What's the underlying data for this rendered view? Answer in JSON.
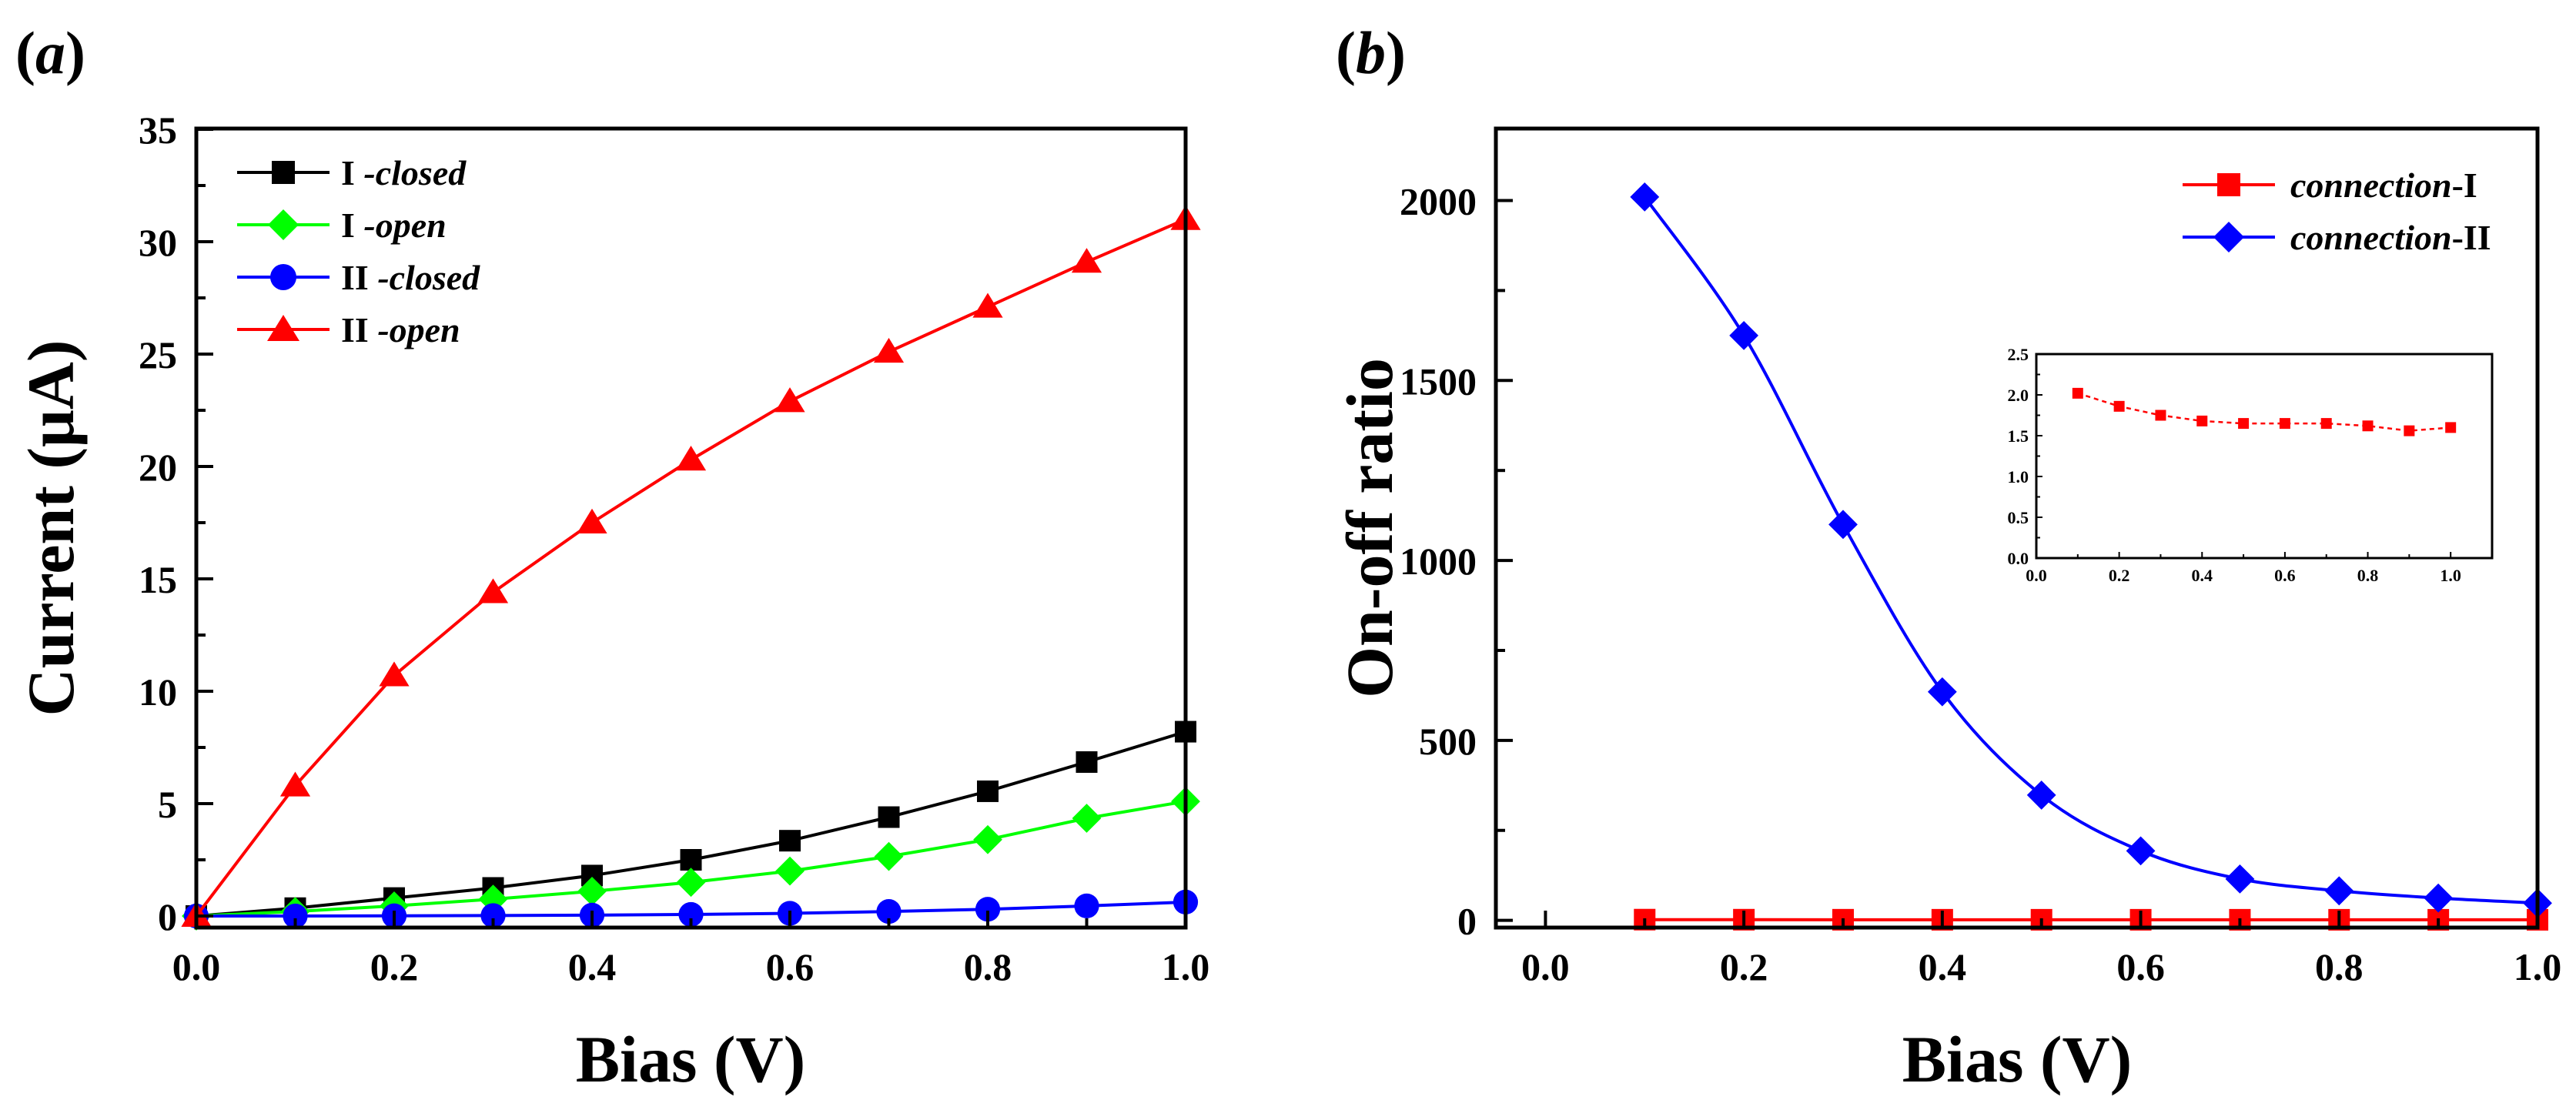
{
  "figure": {
    "panels": [
      {
        "label_open": "(",
        "label_letter": "a",
        "label_close": ")"
      },
      {
        "label_open": "(",
        "label_letter": "b",
        "label_close": ")"
      }
    ]
  },
  "chart_data": [
    {
      "type": "line",
      "panel": "a",
      "title": "",
      "xlabel": "Bias (V)",
      "ylabel": "Current (μA)",
      "xlim": [
        0,
        1.0
      ],
      "ylim": [
        0,
        35
      ],
      "xticks": [
        "0.0",
        "0.2",
        "0.4",
        "0.6",
        "0.8",
        "1.0"
      ],
      "yticks": [
        "0",
        "5",
        "10",
        "15",
        "20",
        "25",
        "30",
        "35"
      ],
      "x": [
        0,
        0.1,
        0.2,
        0.3,
        0.4,
        0.5,
        0.6,
        0.7,
        0.8,
        0.9,
        1.0
      ],
      "legend_position": "top-left",
      "series": [
        {
          "name": "I -closed",
          "name_prefix": "I",
          "name_suffix": " -closed",
          "color": "#000000",
          "marker": "square",
          "values": [
            0,
            0.35,
            0.8,
            1.25,
            1.8,
            2.5,
            3.35,
            4.4,
            5.55,
            6.85,
            8.2
          ]
        },
        {
          "name": "I -open",
          "name_prefix": "I",
          "name_suffix": " -open",
          "color": "#00ff00",
          "marker": "diamond",
          "values": [
            0,
            0.2,
            0.45,
            0.75,
            1.1,
            1.5,
            2.0,
            2.65,
            3.4,
            4.35,
            5.1
          ]
        },
        {
          "name": "II -closed",
          "name_prefix": "II",
          "name_suffix": " -closed",
          "color": "#0000ff",
          "marker": "circle",
          "values": [
            0,
            0.0,
            0.01,
            0.02,
            0.04,
            0.07,
            0.12,
            0.2,
            0.3,
            0.45,
            0.62
          ]
        },
        {
          "name": "II -open",
          "name_prefix": "II",
          "name_suffix": " -open",
          "color": "#ff0000",
          "marker": "triangle",
          "values": [
            0,
            5.8,
            10.7,
            14.4,
            17.5,
            20.3,
            22.9,
            25.1,
            27.1,
            29.1,
            31.0
          ]
        }
      ]
    },
    {
      "type": "line",
      "panel": "b",
      "title": "",
      "xlabel": "Bias (V)",
      "ylabel": "On-off ratio",
      "xlim": [
        -0.05,
        1.0
      ],
      "ylim": [
        -20,
        2200
      ],
      "xticks": [
        "0.0",
        "0.2",
        "0.4",
        "0.6",
        "0.8",
        "1.0"
      ],
      "yticks": [
        "0",
        "500",
        "1000",
        "1500",
        "2000"
      ],
      "x": [
        0.1,
        0.2,
        0.3,
        0.4,
        0.5,
        0.6,
        0.7,
        0.8,
        0.9,
        1.0
      ],
      "legend_position": "top-right",
      "series": [
        {
          "name": "connection-I",
          "name_italic": "connection",
          "name_suffix": "-I",
          "color": "#ff0000",
          "marker": "square",
          "values": [
            2.02,
            1.86,
            1.75,
            1.68,
            1.65,
            1.65,
            1.65,
            1.62,
            1.56,
            1.6
          ]
        },
        {
          "name": "connection-II",
          "name_italic": "connection",
          "name_suffix": "-II",
          "color": "#0000ff",
          "marker": "diamond",
          "values": [
            2010,
            1625,
            1100,
            635,
            348,
            193,
            115,
            82,
            62,
            48
          ]
        }
      ]
    },
    {
      "type": "line",
      "panel": "b-inset",
      "title": "",
      "xlabel": "",
      "ylabel": "",
      "xlim": [
        0,
        1.1
      ],
      "ylim": [
        0,
        2.5
      ],
      "xticks": [
        "0.0",
        "0.2",
        "0.4",
        "0.6",
        "0.8",
        "1.0"
      ],
      "yticks": [
        "0.0",
        "0.5",
        "1.0",
        "1.5",
        "2.0",
        "2.5"
      ],
      "x": [
        0.1,
        0.2,
        0.3,
        0.4,
        0.5,
        0.6,
        0.7,
        0.8,
        0.9,
        1.0
      ],
      "series": [
        {
          "name": "connection-I",
          "color": "#ff0000",
          "marker": "square",
          "dashed": true,
          "values": [
            2.02,
            1.86,
            1.75,
            1.68,
            1.65,
            1.65,
            1.65,
            1.62,
            1.56,
            1.6
          ]
        }
      ]
    }
  ]
}
